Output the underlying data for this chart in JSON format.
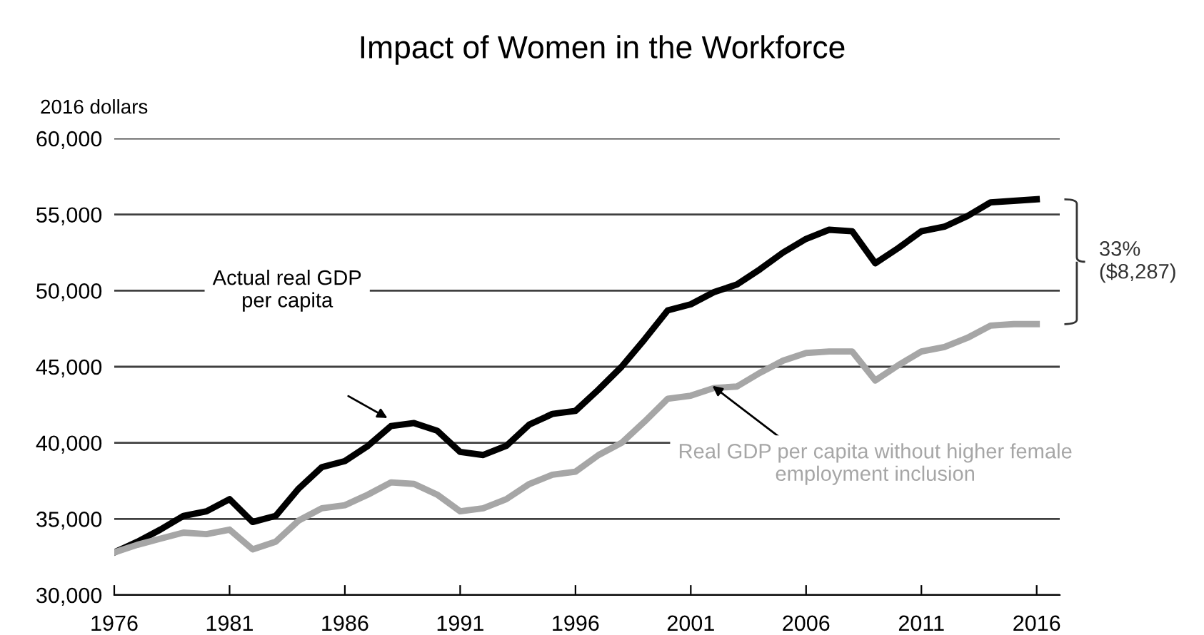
{
  "chart_data": {
    "type": "line",
    "title": "Impact of Women in the Workforce",
    "ylabel": "2016 dollars",
    "x": [
      1976,
      1977,
      1978,
      1979,
      1980,
      1981,
      1982,
      1983,
      1984,
      1985,
      1986,
      1987,
      1988,
      1989,
      1990,
      1991,
      1992,
      1993,
      1994,
      1995,
      1996,
      1997,
      1998,
      1999,
      2000,
      2001,
      2002,
      2003,
      2004,
      2005,
      2006,
      2007,
      2008,
      2009,
      2010,
      2011,
      2012,
      2013,
      2014,
      2015,
      2016
    ],
    "series": [
      {
        "name": "Actual real GDP\nper capita",
        "color": "#000000",
        "values": [
          32800,
          33500,
          34300,
          35200,
          35500,
          36300,
          34800,
          35200,
          37000,
          38400,
          38800,
          39800,
          41100,
          41300,
          40800,
          39400,
          39200,
          39800,
          41200,
          41900,
          42100,
          43500,
          45000,
          46800,
          48700,
          49100,
          49900,
          50400,
          51400,
          52500,
          53400,
          54000,
          53900,
          51800,
          52800,
          53900,
          54200,
          54900,
          55800,
          55900,
          56000
        ]
      },
      {
        "name": "Real GDP per capita without higher female\nemployment inclusion",
        "color": "#a6a6a6",
        "values": [
          32800,
          33300,
          33700,
          34100,
          34000,
          34300,
          33000,
          33500,
          34900,
          35700,
          35900,
          36600,
          37400,
          37300,
          36600,
          35500,
          35700,
          36300,
          37300,
          37900,
          38100,
          39200,
          40000,
          41400,
          42900,
          43100,
          43600,
          43700,
          44600,
          45400,
          45900,
          46000,
          46000,
          44100,
          45100,
          46000,
          46300,
          46900,
          47700,
          47800,
          47800
        ]
      }
    ],
    "xlim": [
      1976,
      2017
    ],
    "xticks": [
      1976,
      1981,
      1986,
      1991,
      1996,
      2001,
      2006,
      2011,
      2016
    ],
    "ylim": [
      30000,
      60000
    ],
    "yticks": [
      {
        "value": 30000,
        "label": "30,000"
      },
      {
        "value": 35000,
        "label": "35,000"
      },
      {
        "value": 40000,
        "label": "40,000"
      },
      {
        "value": 45000,
        "label": "45,000"
      },
      {
        "value": 50000,
        "label": "50,000"
      },
      {
        "value": 55000,
        "label": "55,000"
      },
      {
        "value": 60000,
        "label": "60,000"
      }
    ],
    "grid": "y",
    "legend": false,
    "marker": "none",
    "line_style": "solid",
    "annotations": [
      "33%\n($8,287)"
    ]
  }
}
